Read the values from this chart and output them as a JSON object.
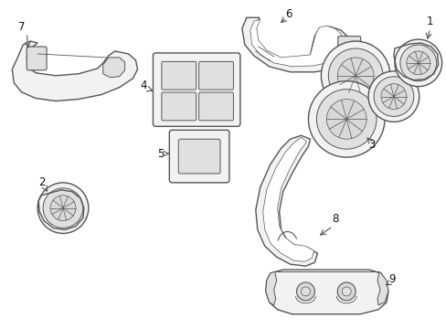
{
  "bg_color": "#ffffff",
  "line_color": "#555555",
  "line_width": 1.0,
  "label_color": "#111111",
  "label_fontsize": 8.5,
  "fig_width": 4.89,
  "fig_height": 3.6,
  "dpi": 100
}
